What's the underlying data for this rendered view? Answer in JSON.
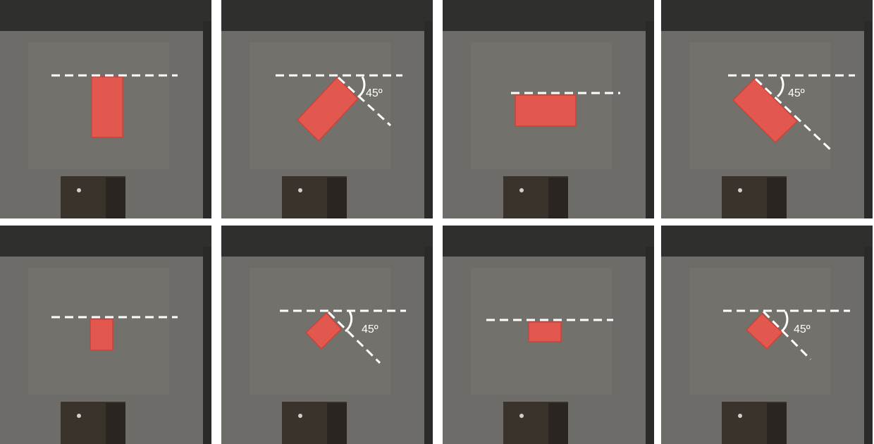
{
  "figure": {
    "angle_label": "45º",
    "colors": {
      "block": "#e2584f",
      "block_edge": "#c9433b",
      "floor": "#6d6c68",
      "wall": "#2f2f2d",
      "guide": "#ffffff",
      "bin": "#3a332c"
    },
    "panels": [
      {
        "row": 1,
        "col": 1,
        "block_size": "large",
        "block_orientation_deg": 90,
        "angle_annotated": false
      },
      {
        "row": 1,
        "col": 2,
        "block_size": "large",
        "block_orientation_deg": 45,
        "angle_annotated": true
      },
      {
        "row": 1,
        "col": 3,
        "block_size": "large",
        "block_orientation_deg": 0,
        "angle_annotated": false
      },
      {
        "row": 1,
        "col": 4,
        "block_size": "large",
        "block_orientation_deg": -45,
        "angle_annotated": true
      },
      {
        "row": 2,
        "col": 1,
        "block_size": "small",
        "block_orientation_deg": 90,
        "angle_annotated": false
      },
      {
        "row": 2,
        "col": 2,
        "block_size": "small",
        "block_orientation_deg": 45,
        "angle_annotated": true
      },
      {
        "row": 2,
        "col": 3,
        "block_size": "small",
        "block_orientation_deg": 0,
        "angle_annotated": false
      },
      {
        "row": 2,
        "col": 4,
        "block_size": "small",
        "block_orientation_deg": -45,
        "angle_annotated": true
      }
    ]
  }
}
